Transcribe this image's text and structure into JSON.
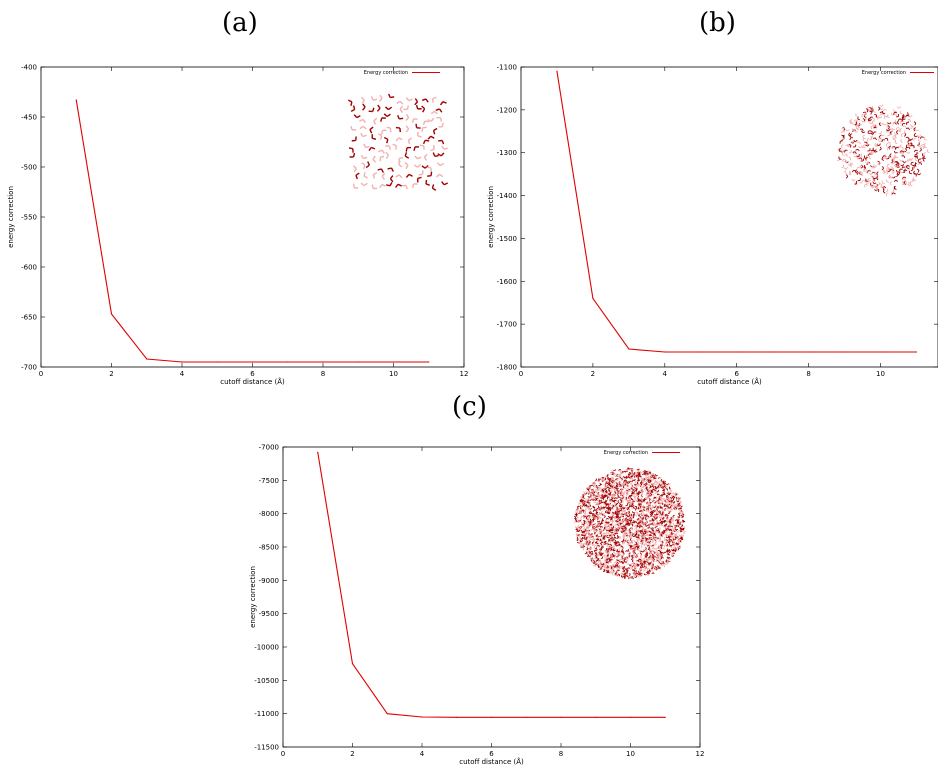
{
  "panel_labels": [
    "(a)",
    "(b)",
    "(c)"
  ],
  "colors": {
    "series": "#e00000",
    "molecule_dark": "#a00000",
    "molecule_light": "#f2b0b0"
  },
  "chart_data": [
    {
      "type": "line",
      "xlabel": "cutoff distance (Å)",
      "ylabel": "energy correction",
      "xlim": [
        0,
        12
      ],
      "ylim": [
        -700,
        -400
      ],
      "xticks": [
        0,
        2,
        4,
        6,
        8,
        10,
        12
      ],
      "yticks": [
        -700,
        -650,
        -600,
        -550,
        -500,
        -450,
        -400
      ],
      "legend_position": "top-right",
      "series": [
        {
          "name": "Energy correction",
          "color": "#e00000",
          "x": [
            1,
            2,
            3,
            4,
            5,
            6,
            7,
            8,
            9,
            10,
            11
          ],
          "y": [
            -433,
            -647,
            -692,
            -695,
            -695,
            -695,
            -695,
            -695,
            -695,
            -695,
            -695
          ]
        }
      ],
      "inset": {
        "shape": "square",
        "molecule_count": 110
      }
    },
    {
      "type": "line",
      "xlabel": "cutoff distance (Å)",
      "ylabel": "energy correction",
      "xlim": [
        0,
        11.6
      ],
      "ylim": [
        -1800,
        -1100
      ],
      "xticks": [
        0,
        2,
        4,
        6,
        8,
        10
      ],
      "yticks": [
        -1800,
        -1700,
        -1600,
        -1500,
        -1400,
        -1300,
        -1200,
        -1100
      ],
      "legend_position": "top-right",
      "series": [
        {
          "name": "Energy correction",
          "color": "#e00000",
          "x": [
            1,
            2,
            3,
            4,
            5,
            6,
            7,
            8,
            9,
            10,
            11
          ],
          "y": [
            -1110,
            -1640,
            -1758,
            -1765,
            -1765,
            -1765,
            -1765,
            -1765,
            -1765,
            -1765,
            -1765
          ]
        }
      ],
      "inset": {
        "shape": "sphere",
        "molecule_count": 420
      }
    },
    {
      "type": "line",
      "xlabel": "cutoff distance (Å)",
      "ylabel": "energy correction",
      "xlim": [
        0,
        12
      ],
      "ylim": [
        -11500,
        -7000
      ],
      "xticks": [
        0,
        2,
        4,
        6,
        8,
        10,
        12
      ],
      "yticks": [
        -11500,
        -11000,
        -10500,
        -10000,
        -9500,
        -9000,
        -8500,
        -8000,
        -7500,
        -7000
      ],
      "legend_position": "top-right",
      "series": [
        {
          "name": "Energy correction",
          "color": "#e00000",
          "x": [
            1,
            2,
            3,
            4,
            5,
            6,
            7,
            8,
            9,
            10,
            11
          ],
          "y": [
            -7080,
            -10250,
            -11000,
            -11050,
            -11055,
            -11055,
            -11055,
            -11055,
            -11055,
            -11055,
            -11055
          ]
        }
      ],
      "inset": {
        "shape": "sphere",
        "molecule_count": 2600
      }
    }
  ]
}
